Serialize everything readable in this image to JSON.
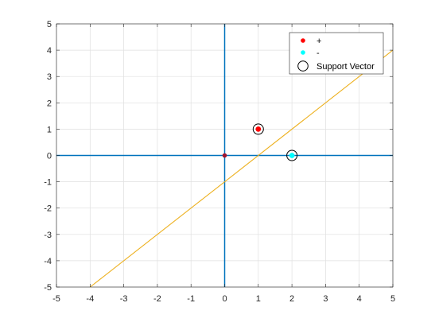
{
  "chart_data": {
    "type": "scatter",
    "xlim": [
      -5,
      5
    ],
    "ylim": [
      -5,
      5
    ],
    "xticks": [
      -5,
      -4,
      -3,
      -2,
      -1,
      0,
      1,
      2,
      3,
      4,
      5
    ],
    "yticks": [
      -5,
      -4,
      -3,
      -2,
      -1,
      0,
      1,
      2,
      3,
      4,
      5
    ],
    "grid": true,
    "legend_position": "top-right",
    "axes_lines": [
      {
        "orientation": "vertical",
        "x": 0,
        "color": "#0072bd"
      },
      {
        "orientation": "horizontal",
        "y": 0,
        "color": "#0072bd"
      }
    ],
    "series": [
      {
        "name": "+",
        "color": "#ff0000",
        "marker": "dot",
        "points": [
          {
            "x": 1,
            "y": 1
          }
        ]
      },
      {
        "name": "-",
        "color": "#00ffff",
        "marker": "dot",
        "points": [
          {
            "x": 2,
            "y": 0
          }
        ]
      },
      {
        "name": "Support Vector",
        "color": "#000000",
        "marker": "circle",
        "points": [
          {
            "x": 1,
            "y": 1
          },
          {
            "x": 2,
            "y": 0
          }
        ]
      }
    ],
    "extra_points": [
      {
        "x": 0,
        "y": 0,
        "color": "#a2142f"
      }
    ],
    "decision_boundary": {
      "slope": 1,
      "intercept": -1,
      "x_range": [
        -4,
        5
      ],
      "color": "#edb120"
    }
  }
}
